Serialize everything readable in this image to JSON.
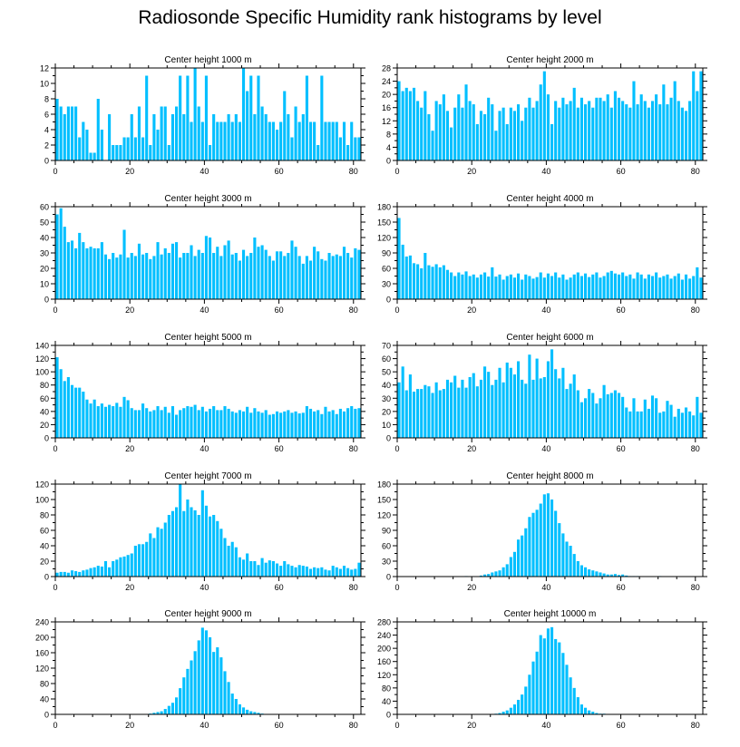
{
  "title": "Radiosonde Specific Humidity rank histograms by level",
  "colors": {
    "bar": "#00BFFF",
    "axis": "#000000"
  },
  "chart_data": [
    {
      "type": "bar",
      "title": "Center height 1000 m",
      "xlim": [
        0,
        82
      ],
      "ylim": [
        0,
        12
      ],
      "xticks": [
        0,
        20,
        40,
        60,
        80
      ],
      "yticks": [
        0,
        2,
        4,
        6,
        8,
        10,
        12
      ],
      "values": [
        8,
        7,
        6,
        7,
        7,
        7,
        3,
        5,
        4,
        1,
        1,
        8,
        4,
        0,
        6,
        2,
        2,
        2,
        3,
        3,
        6,
        3,
        7,
        3,
        11,
        2,
        6,
        4,
        7,
        7,
        2,
        6,
        7,
        11,
        6,
        11,
        5,
        12,
        7,
        5,
        11,
        2,
        6,
        5,
        5,
        5,
        6,
        5,
        6,
        5,
        12,
        9,
        11,
        6,
        11,
        7,
        6,
        5,
        5,
        4,
        5,
        9,
        6,
        3,
        7,
        5,
        6,
        11,
        5,
        5,
        2,
        11,
        5,
        5,
        5,
        5,
        3,
        5,
        2,
        5,
        3,
        3
      ]
    },
    {
      "type": "bar",
      "title": "Center height 2000 m",
      "xlim": [
        0,
        82
      ],
      "ylim": [
        0,
        28
      ],
      "xticks": [
        0,
        20,
        40,
        60,
        80
      ],
      "yticks": [
        0,
        4,
        8,
        12,
        16,
        20,
        24,
        28
      ],
      "values": [
        24,
        21,
        22,
        21,
        22,
        18,
        16,
        21,
        14,
        9,
        18,
        17,
        20,
        15,
        10,
        16,
        20,
        16,
        23,
        18,
        17,
        11,
        15,
        14,
        19,
        17,
        9,
        15,
        16,
        11,
        16,
        15,
        17,
        12,
        16,
        19,
        16,
        18,
        23,
        27,
        20,
        11,
        18,
        16,
        19,
        17,
        18,
        22,
        16,
        19,
        17,
        18,
        16,
        19,
        19,
        18,
        20,
        16,
        21,
        19,
        18,
        17,
        16,
        24,
        17,
        20,
        18,
        16,
        18,
        20,
        17,
        23,
        17,
        19,
        24,
        18,
        16,
        15,
        18,
        27,
        21,
        27
      ]
    },
    {
      "type": "bar",
      "title": "Center height 3000 m",
      "xlim": [
        0,
        82
      ],
      "ylim": [
        0,
        60
      ],
      "xticks": [
        0,
        20,
        40,
        60,
        80
      ],
      "yticks": [
        0,
        10,
        20,
        30,
        40,
        50,
        60
      ],
      "values": [
        55,
        59,
        47,
        37,
        38,
        33,
        43,
        37,
        33,
        34,
        33,
        33,
        37,
        29,
        26,
        30,
        27,
        29,
        45,
        27,
        30,
        28,
        36,
        29,
        30,
        26,
        28,
        37,
        29,
        33,
        30,
        36,
        37,
        27,
        30,
        30,
        35,
        28,
        32,
        30,
        41,
        40,
        30,
        34,
        28,
        35,
        38,
        29,
        30,
        25,
        32,
        28,
        30,
        40,
        34,
        35,
        32,
        28,
        25,
        31,
        31,
        28,
        30,
        38,
        34,
        28,
        23,
        28,
        25,
        34,
        31,
        26,
        25,
        30,
        28,
        29,
        28,
        34,
        30,
        27,
        33,
        32
      ]
    },
    {
      "type": "bar",
      "title": "Center height 4000 m",
      "xlim": [
        0,
        82
      ],
      "ylim": [
        0,
        180
      ],
      "xticks": [
        0,
        20,
        40,
        60,
        80
      ],
      "yticks": [
        0,
        30,
        60,
        90,
        120,
        150,
        180
      ],
      "values": [
        158,
        106,
        83,
        85,
        70,
        68,
        60,
        90,
        66,
        63,
        68,
        62,
        66,
        57,
        52,
        45,
        52,
        48,
        54,
        45,
        48,
        42,
        48,
        52,
        44,
        62,
        44,
        48,
        38,
        45,
        48,
        42,
        50,
        38,
        48,
        45,
        40,
        43,
        52,
        42,
        50,
        45,
        52,
        42,
        48,
        38,
        42,
        48,
        52,
        45,
        50,
        43,
        48,
        52,
        42,
        45,
        52,
        55,
        50,
        48,
        52,
        45,
        48,
        40,
        52,
        48,
        40,
        48,
        45,
        52,
        42,
        45,
        48,
        40,
        45,
        50,
        38,
        48,
        40,
        45,
        62,
        42
      ]
    },
    {
      "type": "bar",
      "title": "Center height 5000 m",
      "xlim": [
        0,
        82
      ],
      "ylim": [
        0,
        140
      ],
      "xticks": [
        0,
        20,
        40,
        60,
        80
      ],
      "yticks": [
        0,
        20,
        40,
        60,
        80,
        100,
        120,
        140
      ],
      "values": [
        122,
        104,
        86,
        92,
        80,
        76,
        76,
        70,
        58,
        52,
        58,
        48,
        52,
        47,
        50,
        48,
        53,
        47,
        62,
        57,
        45,
        42,
        42,
        52,
        45,
        40,
        42,
        48,
        42,
        47,
        38,
        48,
        35,
        42,
        45,
        48,
        47,
        50,
        42,
        47,
        40,
        44,
        48,
        42,
        42,
        48,
        44,
        40,
        38,
        42,
        40,
        47,
        38,
        45,
        40,
        38,
        42,
        35,
        36,
        40,
        38,
        40,
        42,
        38,
        40,
        37,
        38,
        48,
        44,
        40,
        42,
        36,
        47,
        40,
        42,
        36,
        44,
        40,
        45,
        48,
        44,
        45
      ]
    },
    {
      "type": "bar",
      "title": "Center height 6000 m",
      "xlim": [
        0,
        82
      ],
      "ylim": [
        0,
        70
      ],
      "xticks": [
        0,
        20,
        40,
        60,
        80
      ],
      "yticks": [
        0,
        10,
        20,
        30,
        40,
        50,
        60,
        70
      ],
      "values": [
        42,
        54,
        36,
        48,
        35,
        37,
        37,
        40,
        39,
        34,
        42,
        36,
        37,
        44,
        42,
        47,
        38,
        44,
        38,
        46,
        49,
        39,
        44,
        54,
        50,
        40,
        44,
        53,
        42,
        57,
        53,
        48,
        58,
        44,
        41,
        63,
        44,
        60,
        45,
        46,
        58,
        67,
        52,
        45,
        53,
        37,
        41,
        48,
        36,
        27,
        30,
        37,
        34,
        26,
        30,
        40,
        33,
        34,
        36,
        34,
        31,
        23,
        20,
        30,
        20,
        20,
        29,
        22,
        32,
        30,
        19,
        20,
        28,
        25,
        16,
        22,
        19,
        23,
        20,
        17,
        31,
        19
      ]
    },
    {
      "type": "bar",
      "title": "Center height 7000 m",
      "xlim": [
        0,
        82
      ],
      "ylim": [
        0,
        120
      ],
      "xticks": [
        0,
        20,
        40,
        60,
        80
      ],
      "yticks": [
        0,
        20,
        40,
        60,
        80,
        100,
        120
      ],
      "values": [
        5,
        6,
        6,
        5,
        8,
        7,
        6,
        8,
        9,
        11,
        12,
        14,
        13,
        20,
        12,
        20,
        22,
        25,
        26,
        28,
        30,
        40,
        42,
        42,
        45,
        56,
        50,
        64,
        62,
        70,
        80,
        85,
        90,
        120,
        85,
        100,
        90,
        86,
        80,
        112,
        92,
        78,
        80,
        72,
        62,
        50,
        40,
        45,
        38,
        25,
        22,
        30,
        20,
        20,
        15,
        24,
        18,
        21,
        20,
        17,
        14,
        20,
        16,
        14,
        12,
        15,
        14,
        13,
        10,
        12,
        11,
        12,
        9,
        8,
        14,
        12,
        10,
        14,
        11,
        9,
        10,
        18
      ]
    },
    {
      "type": "bar",
      "title": "Center height 8000 m",
      "xlim": [
        0,
        82
      ],
      "ylim": [
        0,
        180
      ],
      "xticks": [
        0,
        20,
        40,
        60,
        80
      ],
      "yticks": [
        0,
        30,
        60,
        90,
        120,
        150,
        180
      ],
      "values": [
        0,
        0,
        0,
        0,
        0,
        0,
        0,
        0,
        0,
        0,
        0,
        0,
        0,
        0,
        0,
        0,
        0,
        0,
        1,
        0,
        0,
        0,
        2,
        4,
        5,
        8,
        10,
        12,
        18,
        24,
        38,
        48,
        72,
        80,
        94,
        116,
        124,
        130,
        142,
        160,
        162,
        150,
        128,
        104,
        84,
        68,
        60,
        44,
        30,
        22,
        18,
        14,
        12,
        10,
        8,
        6,
        4,
        4,
        5,
        3,
        4,
        2,
        1,
        1,
        1,
        0,
        0,
        0,
        0,
        0,
        1,
        0,
        0,
        0,
        0,
        0,
        0,
        0,
        0,
        0,
        0,
        0
      ]
    },
    {
      "type": "bar",
      "title": "Center height 9000 m",
      "xlim": [
        0,
        82
      ],
      "ylim": [
        0,
        240
      ],
      "xticks": [
        0,
        20,
        40,
        60,
        80
      ],
      "yticks": [
        0,
        40,
        80,
        120,
        160,
        200,
        240
      ],
      "values": [
        0,
        0,
        0,
        0,
        0,
        0,
        0,
        0,
        0,
        0,
        0,
        0,
        0,
        0,
        0,
        0,
        0,
        0,
        0,
        0,
        0,
        0,
        0,
        1,
        1,
        2,
        4,
        6,
        8,
        14,
        22,
        30,
        44,
        68,
        96,
        118,
        140,
        164,
        192,
        225,
        218,
        200,
        162,
        174,
        148,
        112,
        84,
        54,
        40,
        26,
        18,
        12,
        8,
        6,
        4,
        2,
        1,
        1,
        0,
        0,
        0,
        0,
        0,
        0,
        0,
        0,
        0,
        0,
        0,
        0,
        0,
        0,
        0,
        0,
        0,
        0,
        0,
        0,
        0,
        0,
        0,
        0
      ]
    },
    {
      "type": "bar",
      "title": "Center height 10000 m",
      "xlim": [
        0,
        82
      ],
      "ylim": [
        0,
        280
      ],
      "xticks": [
        0,
        20,
        40,
        60,
        80
      ],
      "yticks": [
        0,
        40,
        80,
        120,
        160,
        200,
        240,
        280
      ],
      "values": [
        0,
        0,
        0,
        0,
        0,
        0,
        0,
        0,
        0,
        0,
        0,
        0,
        0,
        0,
        0,
        0,
        0,
        0,
        0,
        0,
        0,
        0,
        0,
        0,
        0,
        0,
        2,
        4,
        8,
        12,
        20,
        30,
        44,
        60,
        84,
        120,
        160,
        190,
        240,
        230,
        260,
        264,
        228,
        218,
        186,
        150,
        112,
        80,
        52,
        30,
        20,
        12,
        8,
        4,
        2,
        2,
        1,
        0,
        0,
        0,
        0,
        0,
        0,
        0,
        0,
        0,
        0,
        0,
        0,
        0,
        0,
        0,
        0,
        0,
        0,
        0,
        0,
        0,
        0,
        0,
        0,
        0
      ]
    }
  ]
}
